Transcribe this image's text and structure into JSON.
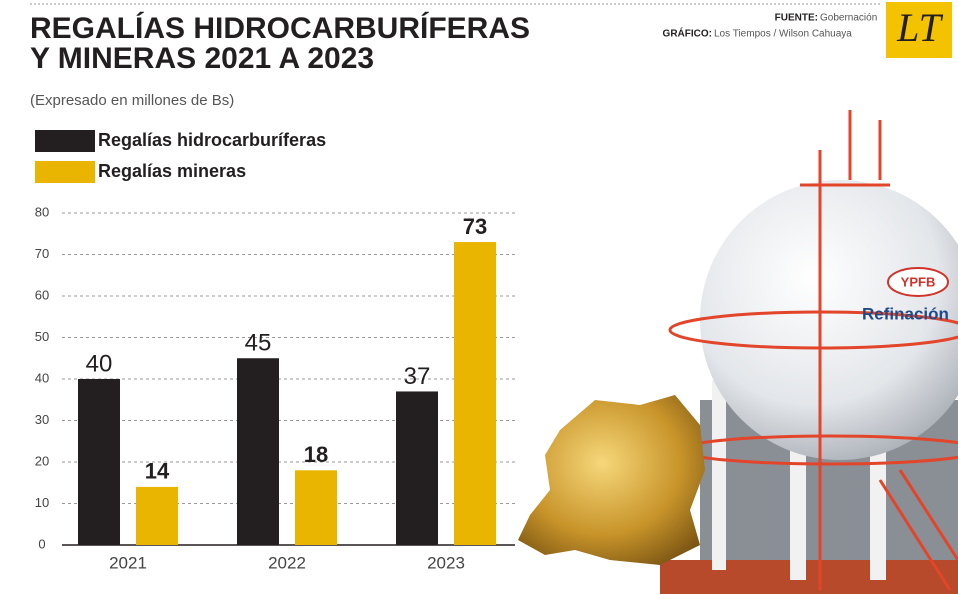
{
  "chart_data": {
    "type": "bar",
    "title": [
      "REGALÍAS HIDROCARBURÍFERAS",
      "Y MINERAS 2021 A 2023"
    ],
    "subtitle": "(Expresado en millones de Bs)",
    "source_label": "FUENTE:",
    "source": "Gobernación",
    "credit_label": "GRÁFICO:",
    "credit": "Los Tiempos / Wilson Cahuaya",
    "logo": "LT",
    "categories": [
      "2021",
      "2022",
      "2023"
    ],
    "series": [
      {
        "name": "Regalías hidrocarburíferas",
        "color": "#231f20",
        "values": [
          40,
          45,
          37
        ]
      },
      {
        "name": "Regalías mineras",
        "color": "#e9b500",
        "values": [
          14,
          18,
          73
        ]
      }
    ],
    "ylim": [
      0,
      80
    ],
    "yticks": [
      0,
      10,
      20,
      30,
      40,
      50,
      60,
      70,
      80
    ],
    "grid": true
  },
  "illustration": {
    "brand": "YPFB",
    "label": "Refinación"
  }
}
